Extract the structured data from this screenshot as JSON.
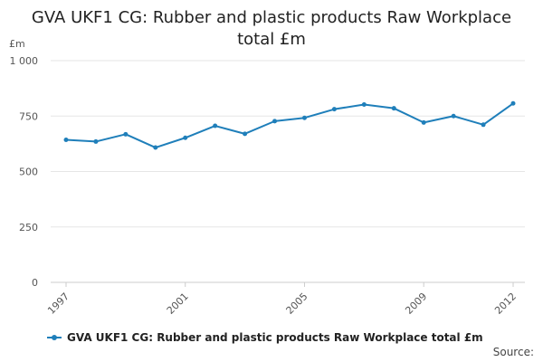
{
  "chart_data": {
    "type": "line",
    "title_lines": [
      "GVA UKF1 CG: Rubber and plastic products Raw Workplace",
      "total £m"
    ],
    "ylabel": "£m",
    "ylim": [
      0,
      1000
    ],
    "yticks": [
      0,
      250,
      500,
      750,
      1000
    ],
    "ytick_labels": [
      "0",
      "250",
      "500",
      "750",
      "1 000"
    ],
    "xlim": [
      1997,
      2012
    ],
    "xticks": [
      1997,
      2001,
      2005,
      2009,
      2012
    ],
    "xtick_labels": [
      "1997",
      "2001",
      "2005",
      "2009",
      "2012"
    ],
    "grid": true,
    "legend_position": "bottom",
    "series": [
      {
        "name": "GVA UKF1 CG: Rubber and plastic products Raw Workplace total £m",
        "color": "#1f7fba",
        "x": [
          1997,
          1998,
          1999,
          2000,
          2001,
          2002,
          2003,
          2004,
          2005,
          2006,
          2007,
          2008,
          2009,
          2010,
          2011,
          2012
        ],
        "values": [
          643,
          635,
          668,
          608,
          652,
          706,
          670,
          727,
          742,
          781,
          802,
          785,
          721,
          750,
          711,
          807
        ]
      }
    ]
  },
  "legend": {
    "label": "GVA UKF1 CG: Rubber and plastic products Raw Workplace total £m"
  },
  "source": {
    "label": "Source:"
  }
}
